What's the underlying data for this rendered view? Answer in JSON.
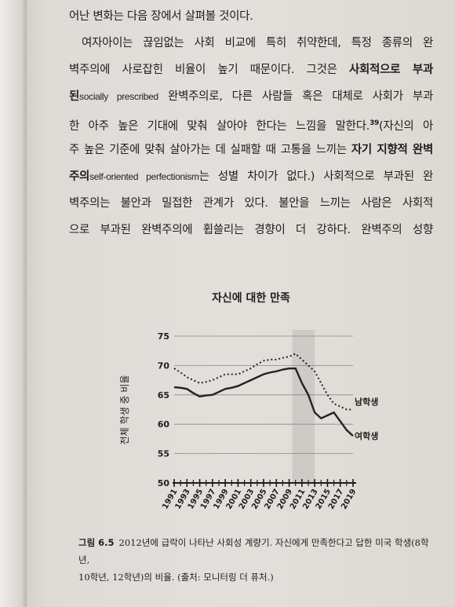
{
  "body_lines": [
    [
      {
        "text": "어난 변화는 다음 장에서 살펴볼 것이다."
      }
    ],
    [
      {
        "text": "여자아이는 끊임없는 사회 비교에 특히 취약한데, 특정 종류의 완"
      }
    ],
    [
      {
        "text": "벽주의에 사로잡힌 비율이 높기 때문이다. 그것은 "
      },
      {
        "text": "사회적으로 부과",
        "bold": true
      }
    ],
    [
      {
        "text": "된",
        "bold": true
      },
      {
        "text": "socially prescribed",
        "latin": true
      },
      {
        "text": " 완벽주의로, 다른 사람들 혹은 대체로 사회가 부과"
      }
    ],
    [
      {
        "text": "한 아주 높은 기대에 맞춰 살아야 한다는 느낌을 말한다."
      },
      {
        "text": "39",
        "superscript": true
      },
      {
        "text": "(자신의 아"
      }
    ],
    [
      {
        "text": "주 높은 기준에 맞춰 살아가는 데 실패할 때 고통을 느끼는 "
      },
      {
        "text": "자기 지향적 완벽",
        "bold": true
      }
    ],
    [
      {
        "text": "주의",
        "bold": true
      },
      {
        "text": "self-oriented perfectionism",
        "latin": true
      },
      {
        "text": "는 성별 차이가 없다.) 사회적으로 부과된 완"
      }
    ],
    [
      {
        "text": "벽주의는 불안과 밀접한 관계가 있다. 불안을 느끼는 사람은 사회적"
      }
    ],
    [
      {
        "text": "으로 부과된 완벽주의에 휩쓸리는 경향이 더 강하다. 완벽주의 성향"
      }
    ]
  ],
  "chart_data": {
    "type": "line",
    "title": "자신에 대한 만족",
    "y_label": "전체 학생 중 비율",
    "x": [
      1991,
      1992,
      1993,
      1994,
      1995,
      1996,
      1997,
      1998,
      1999,
      2000,
      2001,
      2002,
      2003,
      2004,
      2005,
      2006,
      2007,
      2008,
      2009,
      2010,
      2011,
      2012,
      2013,
      2014,
      2015,
      2016,
      2017,
      2018,
      2019
    ],
    "xlim": [
      1991,
      2019
    ],
    "xticks": [
      1991,
      1993,
      1995,
      1997,
      1999,
      2001,
      2003,
      2005,
      2007,
      2009,
      2011,
      2013,
      2015,
      2017,
      2019
    ],
    "ylim": [
      50,
      75
    ],
    "yticks": [
      50,
      55,
      60,
      65,
      70,
      75
    ],
    "grid": true,
    "shaded_range": [
      2009.5,
      2013
    ],
    "series": [
      {
        "name": "남학생",
        "color": "#222222",
        "line_style": "dotted",
        "values": [
          69.5,
          68.8,
          68,
          67.5,
          67,
          67.2,
          67.5,
          68,
          68.5,
          68.5,
          68.5,
          69,
          69.5,
          70.2,
          70.8,
          71,
          71,
          71.3,
          71.5,
          72,
          71,
          70,
          69,
          67,
          65,
          63.5,
          63,
          62.5,
          62.5
        ]
      },
      {
        "name": "여학생",
        "color": "#222222",
        "line_style": "solid",
        "values": [
          66.3,
          66.2,
          66,
          65.3,
          64.7,
          64.9,
          65,
          65.5,
          66,
          66.2,
          66.5,
          67,
          67.5,
          68,
          68.5,
          68.8,
          69,
          69.3,
          69.5,
          69.5,
          67,
          65,
          62,
          61,
          61.5,
          62,
          60.5,
          59,
          58
        ]
      }
    ]
  },
  "caption": {
    "label": "그림 6.5",
    "lines": [
      "2012년에 급락이 나타난 사회성 계량기. 자신에게 만족한다고 답한 미국 학생(8학년,",
      "10학년, 12학년)의 비율. (출처: 모니터링 더 퓨처.)"
    ]
  }
}
